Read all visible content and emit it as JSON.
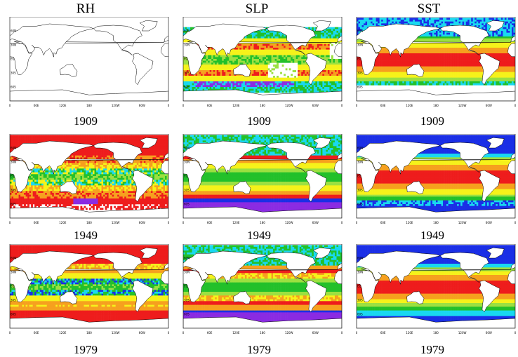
{
  "columns": [
    "RH",
    "SLP",
    "SST"
  ],
  "years": [
    "1909",
    "1949",
    "1979"
  ],
  "lon_ticks": [
    "0",
    "60E",
    "120E",
    "180",
    "120W",
    "60W",
    "0"
  ],
  "lat_ticks": [
    "60N",
    "30N",
    "EQ",
    "30S",
    "60S"
  ],
  "palette": {
    "purple": "#8a2be2",
    "blue": "#1a2ee6",
    "cyan": "#19d8f0",
    "green": "#22c02a",
    "lightgreen": "#9ce040",
    "yellow": "#f6f21a",
    "orange": "#f6a01e",
    "red": "#ee1c1c",
    "land": "#ffffff",
    "coast": "#000000"
  },
  "maps": [
    {
      "variable": "RH",
      "year": "1909",
      "pattern": "rh1909"
    },
    {
      "variable": "SLP",
      "year": "1909",
      "pattern": "slp1909"
    },
    {
      "variable": "SST",
      "year": "1909",
      "pattern": "sst1909"
    },
    {
      "variable": "RH",
      "year": "1949",
      "pattern": "rh1949"
    },
    {
      "variable": "SLP",
      "year": "1949",
      "pattern": "slp1949"
    },
    {
      "variable": "SST",
      "year": "1949",
      "pattern": "sst1949"
    },
    {
      "variable": "RH",
      "year": "1979",
      "pattern": "rh1979"
    },
    {
      "variable": "SLP",
      "year": "1979",
      "pattern": "slp1979"
    },
    {
      "variable": "SST",
      "year": "1979",
      "pattern": "sst1979"
    }
  ]
}
